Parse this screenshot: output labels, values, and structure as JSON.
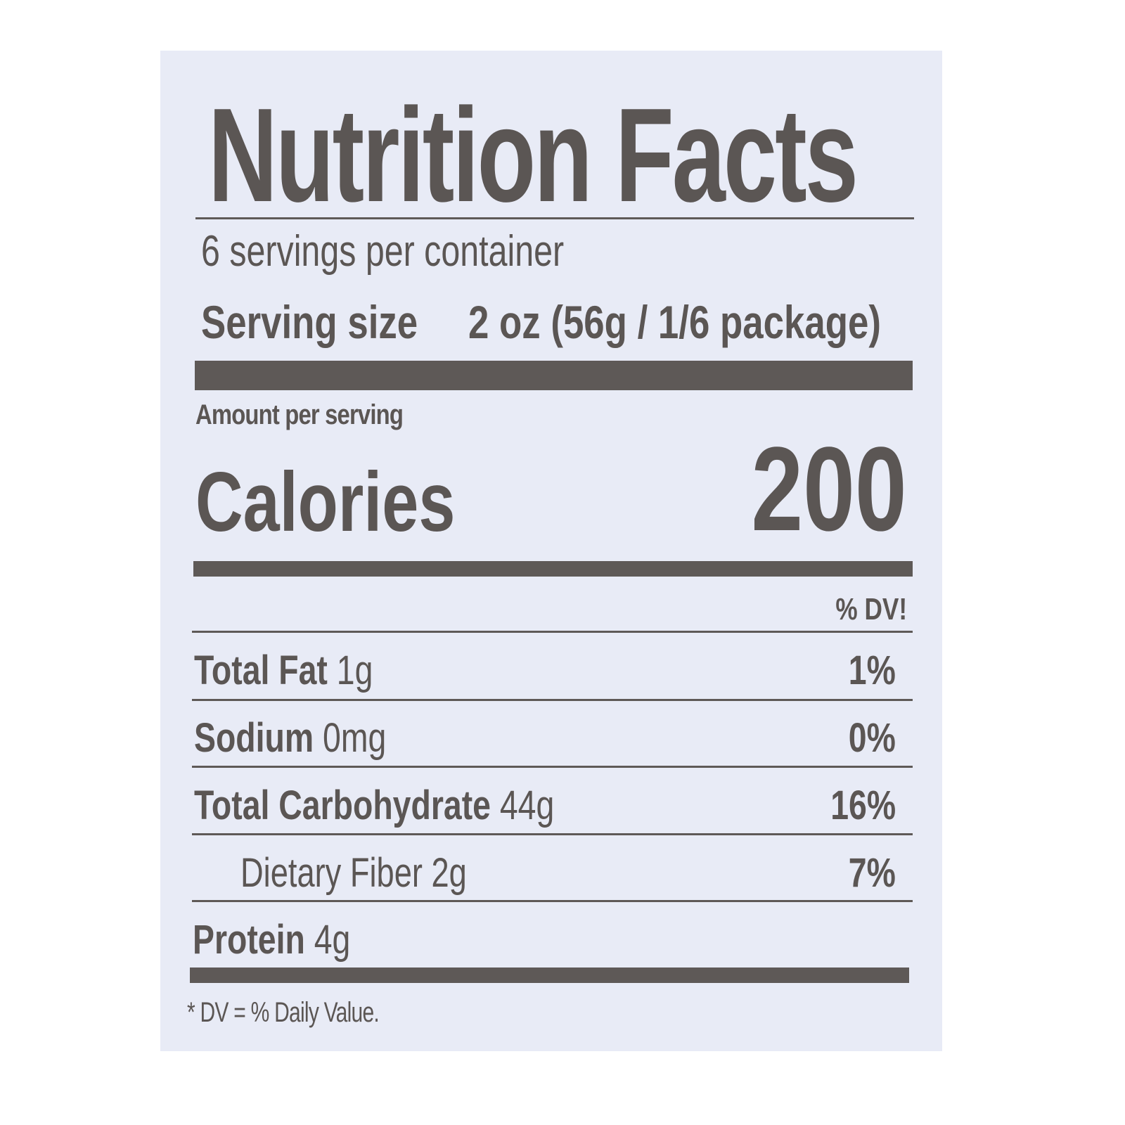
{
  "label": {
    "title": "Nutrition Facts",
    "servings_per_container": "6 servings per container",
    "serving_size_label": "Serving size",
    "serving_size_value": "2 oz (56g / 1/6 package)",
    "amount_per_serving": "Amount per serving",
    "calories_label": "Calories",
    "calories_value": "200",
    "dv_header": "% DV!",
    "nutrients": [
      {
        "name": "Total Fat",
        "amount": "1g",
        "dv": "1%"
      },
      {
        "name": "Sodium",
        "amount": "0mg",
        "dv": "0%"
      },
      {
        "name": "Total Carbohydrate",
        "amount": "44g",
        "dv": "16%"
      },
      {
        "name": "Dietary Fiber",
        "amount": "2g",
        "dv": "7%"
      },
      {
        "name": "Protein",
        "amount": "4g",
        "dv": ""
      }
    ],
    "footnote": "* DV = % Daily Value."
  },
  "colors": {
    "ink": "#5b5654",
    "background": "#e8ebf6"
  }
}
